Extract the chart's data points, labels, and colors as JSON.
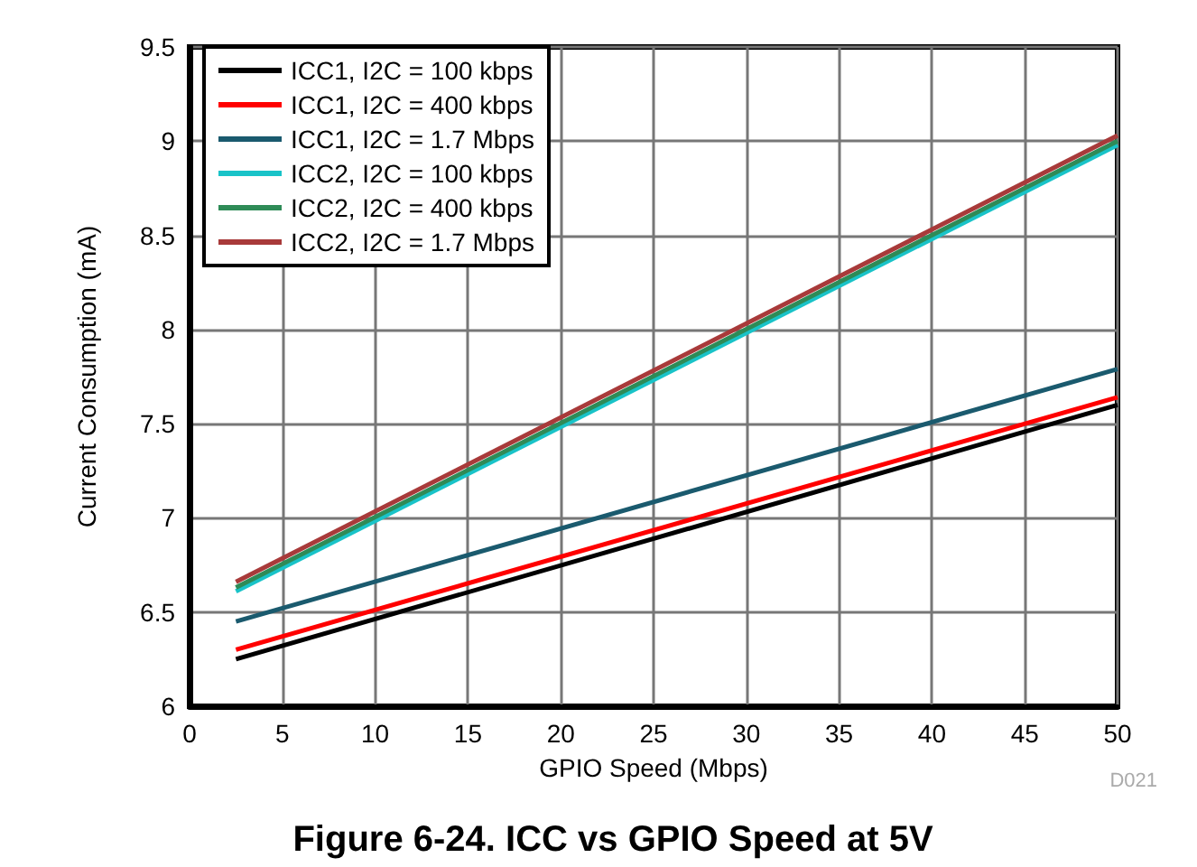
{
  "chart_data": {
    "type": "line",
    "title": "Figure 6-24. ICC vs GPIO Speed at 5V",
    "xlabel": "GPIO Speed (Mbps)",
    "ylabel": "Current Consumption (mA)",
    "annotations": [
      "D021"
    ],
    "xlim": [
      0,
      50
    ],
    "xticks": [
      0,
      5,
      10,
      15,
      20,
      25,
      30,
      35,
      40,
      45,
      50
    ],
    "ylim": [
      6,
      9.5
    ],
    "yticks": [
      6,
      6.5,
      7,
      7.5,
      8,
      8.5,
      9,
      9.5
    ],
    "grid": true,
    "legend": "top left",
    "x": [
      2.5,
      50
    ],
    "series": [
      {
        "name": "ICC1, I2C = 100 kbps",
        "color": "#000000",
        "values": [
          6.25,
          7.6
        ]
      },
      {
        "name": "ICC1, I2C = 400 kbps",
        "color": "#ff0000",
        "values": [
          6.3,
          7.64
        ]
      },
      {
        "name": "ICC1, I2C = 1.7 Mbps",
        "color": "#1a5a6e",
        "values": [
          6.45,
          7.79
        ]
      },
      {
        "name": "ICC2, I2C = 100 kbps",
        "color": "#19c3c8",
        "values": [
          6.61,
          8.98
        ]
      },
      {
        "name": "ICC2, I2C = 400 kbps",
        "color": "#2e8b57",
        "values": [
          6.63,
          9.0
        ]
      },
      {
        "name": "ICC2, I2C = 1.7 Mbps",
        "color": "#a83a3a",
        "values": [
          6.66,
          9.03
        ]
      }
    ]
  }
}
